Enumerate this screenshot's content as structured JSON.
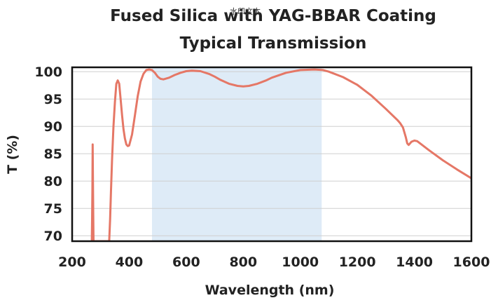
{
  "chart_data": {
    "type": "line",
    "title": "Fused Silica with YAG-BBAR Coating",
    "subtitle": "Typical Transmission",
    "xlabel": "Wavelength (nm)",
    "ylabel": "T (%)",
    "xlim": [
      200,
      1600
    ],
    "ylim": [
      69,
      100.8
    ],
    "x_ticks": [
      200,
      400,
      600,
      800,
      1000,
      1200,
      1400,
      1600
    ],
    "y_ticks": [
      70,
      75,
      80,
      85,
      90,
      95,
      100
    ],
    "x_tick_labels": [
      "200",
      "400",
      "600",
      "800",
      "1000",
      "1200",
      "1400",
      "1600"
    ],
    "y_tick_labels": [
      "70",
      "75",
      "80",
      "85",
      "90",
      "95",
      "100"
    ],
    "grid": true,
    "legend": "none",
    "highlight_band": {
      "from": 480,
      "to": 1075
    },
    "series": [
      {
        "x": [
          269,
          270,
          271,
          272,
          273,
          274,
          275,
          330,
          333,
          336,
          340,
          345,
          350,
          355,
          360,
          365,
          370,
          375,
          380,
          385,
          390,
          395,
          400,
          410,
          420,
          430,
          440,
          450,
          460,
          470,
          480,
          490,
          500,
          510,
          520,
          540,
          560,
          580,
          600,
          620,
          650,
          680,
          700,
          720,
          750,
          780,
          800,
          820,
          850,
          880,
          900,
          950,
          1000,
          1050,
          1080,
          1100,
          1150,
          1200,
          1250,
          1300,
          1340,
          1350,
          1360,
          1370,
          1375,
          1380,
          1390,
          1400,
          1410,
          1420,
          1450,
          1500,
          1550,
          1600
        ],
        "y": [
          69,
          73,
          78,
          86.7,
          80,
          74,
          69,
          69,
          73,
          78,
          84,
          90,
          94.5,
          97.8,
          98.4,
          97.8,
          95,
          92,
          89.5,
          87.8,
          86.7,
          86.4,
          86.5,
          88.5,
          92,
          95.5,
          98.2,
          99.6,
          100.3,
          100.4,
          100.3,
          99.8,
          99.1,
          98.7,
          98.6,
          98.9,
          99.4,
          99.8,
          100.1,
          100.2,
          100.1,
          99.6,
          99.1,
          98.5,
          97.8,
          97.4,
          97.3,
          97.4,
          97.8,
          98.4,
          98.9,
          99.8,
          100.3,
          100.4,
          100.3,
          100.0,
          99.0,
          97.6,
          95.6,
          93.2,
          91.2,
          90.6,
          89.8,
          88.0,
          86.9,
          86.6,
          87.2,
          87.4,
          87.3,
          86.9,
          85.7,
          83.8,
          82.1,
          80.5
        ]
      }
    ],
    "colors": {
      "line": "#e57766",
      "band": "#deebf7",
      "grid": "#cfcfcf",
      "axis": "#111111",
      "text": "#222222"
    }
  },
  "watermark": "水印文本"
}
